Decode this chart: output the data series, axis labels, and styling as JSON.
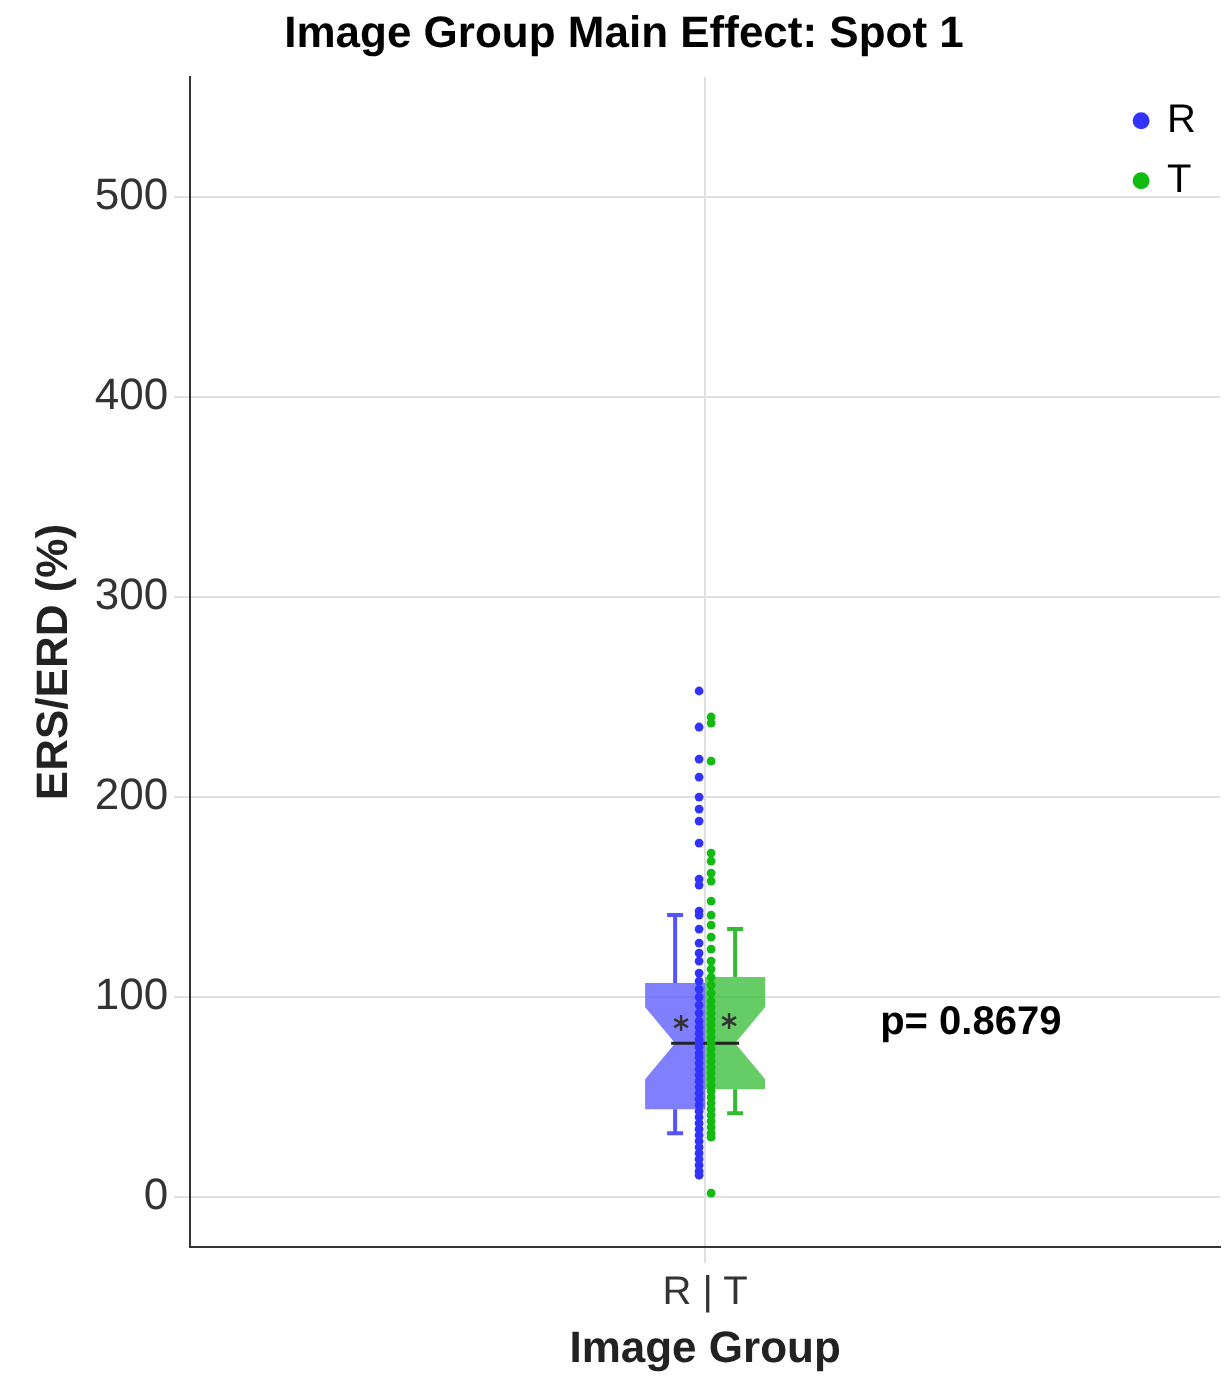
{
  "chart_data": {
    "type": "box",
    "title": "Image Group Main Effect: Spot 1",
    "xlabel": "Image Group",
    "ylabel": "ERS/ERD (%)",
    "categories": [
      "R | T"
    ],
    "ylim": [
      -25,
      560
    ],
    "yticks": [
      0,
      100,
      200,
      300,
      400,
      500
    ],
    "grid": true,
    "legend": "top right",
    "marker": "circle",
    "annotations": [
      "p= 0.8679"
    ],
    "series": [
      {
        "type": "box",
        "color": "#5555ff",
        "boxes": [
          {
            "low": 32,
            "q1": 44,
            "median": 77,
            "q3": 107,
            "high": 141,
            "mean": 87
          }
        ]
      },
      {
        "type": "box",
        "color": "#33bb33",
        "boxes": [
          {
            "low": 42,
            "q1": 54,
            "median": 77,
            "q3": 110,
            "high": 134,
            "mean": 88
          }
        ]
      },
      {
        "type": "scatter",
        "name": "R",
        "color": "#3333ff",
        "x": [
          "R | T",
          "R | T",
          "R | T",
          "R | T",
          "R | T",
          "R | T",
          "R | T",
          "R | T",
          "R | T",
          "R | T",
          "R | T",
          "R | T",
          "R | T",
          "R | T",
          "R | T",
          "R | T",
          "R | T",
          "R | T",
          "R | T",
          "R | T",
          "R | T",
          "R | T",
          "R | T",
          "R | T",
          "R | T",
          "R | T",
          "R | T",
          "R | T",
          "R | T",
          "R | T",
          "R | T",
          "R | T",
          "R | T",
          "R | T",
          "R | T",
          "R | T",
          "R | T",
          "R | T",
          "R | T",
          "R | T",
          "R | T",
          "R | T",
          "R | T",
          "R | T",
          "R | T",
          "R | T",
          "R | T",
          "R | T",
          "R | T",
          "R | T"
        ],
        "values": [
          253,
          235,
          219,
          210,
          200,
          194,
          188,
          177,
          159,
          156,
          143,
          141,
          134,
          127,
          122,
          118,
          112,
          108,
          104,
          100,
          96,
          92,
          88,
          85,
          82,
          79,
          77,
          75,
          72,
          70,
          67,
          64,
          61,
          58,
          55,
          52,
          49,
          46,
          43,
          40,
          37,
          34,
          31,
          28,
          25,
          22,
          19,
          16,
          13,
          11
        ]
      },
      {
        "type": "scatter",
        "name": "T",
        "color": "#11bb11",
        "x": [
          "R | T",
          "R | T",
          "R | T",
          "R | T",
          "R | T",
          "R | T",
          "R | T",
          "R | T",
          "R | T",
          "R | T",
          "R | T",
          "R | T",
          "R | T",
          "R | T",
          "R | T",
          "R | T",
          "R | T",
          "R | T",
          "R | T",
          "R | T",
          "R | T",
          "R | T",
          "R | T",
          "R | T",
          "R | T",
          "R | T",
          "R | T",
          "R | T",
          "R | T",
          "R | T",
          "R | T",
          "R | T",
          "R | T",
          "R | T",
          "R | T",
          "R | T",
          "R | T",
          "R | T",
          "R | T",
          "R | T",
          "R | T",
          "R | T"
        ],
        "values": [
          240,
          237,
          218,
          172,
          168,
          162,
          158,
          148,
          141,
          136,
          130,
          124,
          118,
          114,
          110,
          106,
          102,
          98,
          95,
          92,
          89,
          86,
          83,
          80,
          77,
          74,
          71,
          68,
          65,
          62,
          59,
          56,
          53,
          50,
          47,
          44,
          41,
          38,
          35,
          32,
          30,
          2
        ]
      }
    ]
  }
}
